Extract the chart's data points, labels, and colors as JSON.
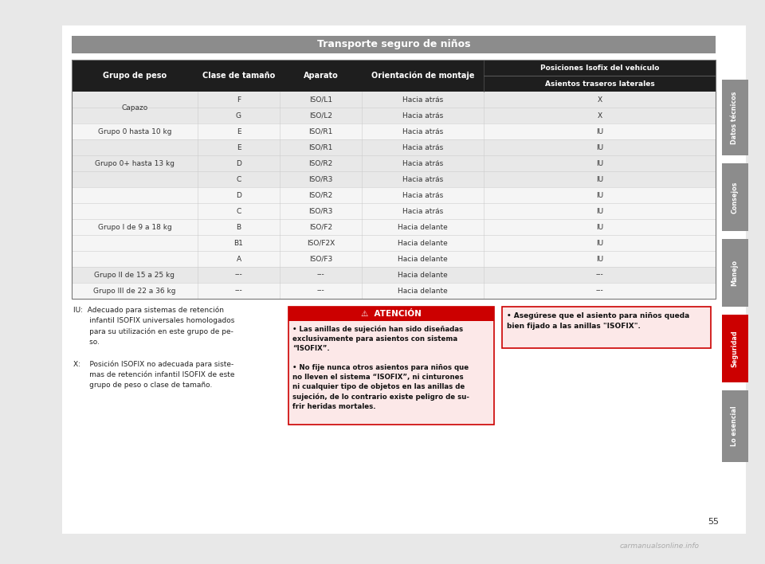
{
  "page_bg": "#e8e8e8",
  "content_bg": "#ffffff",
  "title_text": "Transporte seguro de niños",
  "title_bg": "#8c8c8c",
  "title_color": "#ffffff",
  "header_bg": "#1e1e1e",
  "header_color": "#ffffff",
  "row_alt_bg": "#e8e8e8",
  "row_bg": "#f5f5f5",
  "col_headers": [
    "Grupo de peso",
    "Clase de tamaño",
    "Aparato",
    "Orientación de montaje",
    "Posiciones Isofix del vehículo"
  ],
  "col_subheader": "Asientos traseros laterales",
  "rows": [
    [
      "Capazo",
      "F",
      "ISO/L1",
      "Hacia atrás",
      "X"
    ],
    [
      "Capazo",
      "G",
      "ISO/L2",
      "Hacia atrás",
      "X"
    ],
    [
      "Grupo 0 hasta 10 kg",
      "E",
      "ISO/R1",
      "Hacia atrás",
      "IU"
    ],
    [
      "Grupo 0+ hasta 13 kg",
      "E",
      "ISO/R1",
      "Hacia atrás",
      "IU"
    ],
    [
      "Grupo 0+ hasta 13 kg",
      "D",
      "ISO/R2",
      "Hacia atrás",
      "IU"
    ],
    [
      "Grupo 0+ hasta 13 kg",
      "C",
      "ISO/R3",
      "Hacia atrás",
      "IU"
    ],
    [
      "Grupo I de 9 a 18 kg",
      "D",
      "ISO/R2",
      "Hacia atrás",
      "IU"
    ],
    [
      "Grupo I de 9 a 18 kg",
      "C",
      "ISO/R3",
      "Hacia atrás",
      "IU"
    ],
    [
      "Grupo I de 9 a 18 kg",
      "B",
      "ISO/F2",
      "Hacia delante",
      "IU"
    ],
    [
      "Grupo I de 9 a 18 kg",
      "B1",
      "ISO/F2X",
      "Hacia delante",
      "IU"
    ],
    [
      "Grupo I de 9 a 18 kg",
      "A",
      "ISO/F3",
      "Hacia delante",
      "IU"
    ],
    [
      "Grupo II de 15 a 25 kg",
      "---",
      "---",
      "Hacia delante",
      "---"
    ],
    [
      "Grupo III de 22 a 36 kg",
      "---",
      "---",
      "Hacia delante",
      "---"
    ]
  ],
  "merged_col0": [
    [
      0,
      1,
      "Capazo"
    ],
    [
      2,
      2,
      "Grupo 0 hasta 10 kg"
    ],
    [
      3,
      5,
      "Grupo 0+ hasta 13 kg"
    ],
    [
      6,
      10,
      "Grupo I de 9 a 18 kg"
    ],
    [
      11,
      11,
      "Grupo II de 15 a 25 kg"
    ],
    [
      12,
      12,
      "Grupo III de 22 a 36 kg"
    ]
  ],
  "atention_title": "⚠  ATENCIÓN",
  "atention_bg": "#fce8e8",
  "atention_border": "#cc0000",
  "atention_title_bg": "#cc0000",
  "atention_title_color": "#ffffff",
  "note_text": "• Asegúrese que el asiento para niños queda\nbien fijado a las anillas \"ISOFIX\".",
  "note_bg": "#fce8e8",
  "note_border": "#cc0000",
  "sidebar_labels": [
    "Datos técnicos",
    "Consejos",
    "Manejo",
    "Seguridad",
    "Lo esencial"
  ],
  "sidebar_bg": [
    "#8c8c8c",
    "#8c8c8c",
    "#8c8c8c",
    "#cc0000",
    "#8c8c8c"
  ],
  "sidebar_color": "#ffffff",
  "page_number": "55"
}
